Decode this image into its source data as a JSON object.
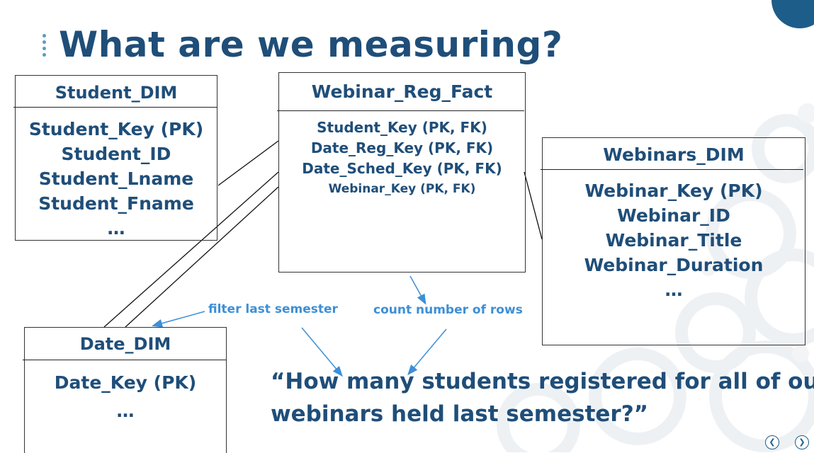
{
  "title": "What are we measuring?",
  "tables": {
    "student": {
      "name": "Student_DIM",
      "columns": [
        "Student_Key (PK)",
        "Student_ID",
        "Student_Lname",
        "Student_Fname",
        "…"
      ]
    },
    "fact": {
      "name": "Webinar_Reg_Fact",
      "columns": [
        "Student_Key (PK, FK)",
        "Date_Reg_Key (PK, FK)",
        "Date_Sched_Key (PK, FK)",
        "Webinar_Key (PK, FK)"
      ]
    },
    "webinars": {
      "name": "Webinars_DIM",
      "columns": [
        "Webinar_Key (PK)",
        "Webinar_ID",
        "Webinar_Title",
        "Webinar_Duration",
        "…"
      ]
    },
    "date": {
      "name": "Date_DIM",
      "columns": [
        "Date_Key (PK)",
        "…"
      ]
    }
  },
  "annotations": {
    "filter": "filter last semester",
    "count": "count number of rows"
  },
  "question": {
    "line1": "“How many students registered for all of our",
    "line2": "webinars held last semester?”"
  },
  "colors": {
    "heading": "#1f4e79",
    "annotation": "#3d8fd6",
    "accent_circle": "#1d5d8a"
  },
  "icons": {
    "prev": "chevron-left-circle-icon",
    "next": "chevron-right-circle-icon"
  }
}
